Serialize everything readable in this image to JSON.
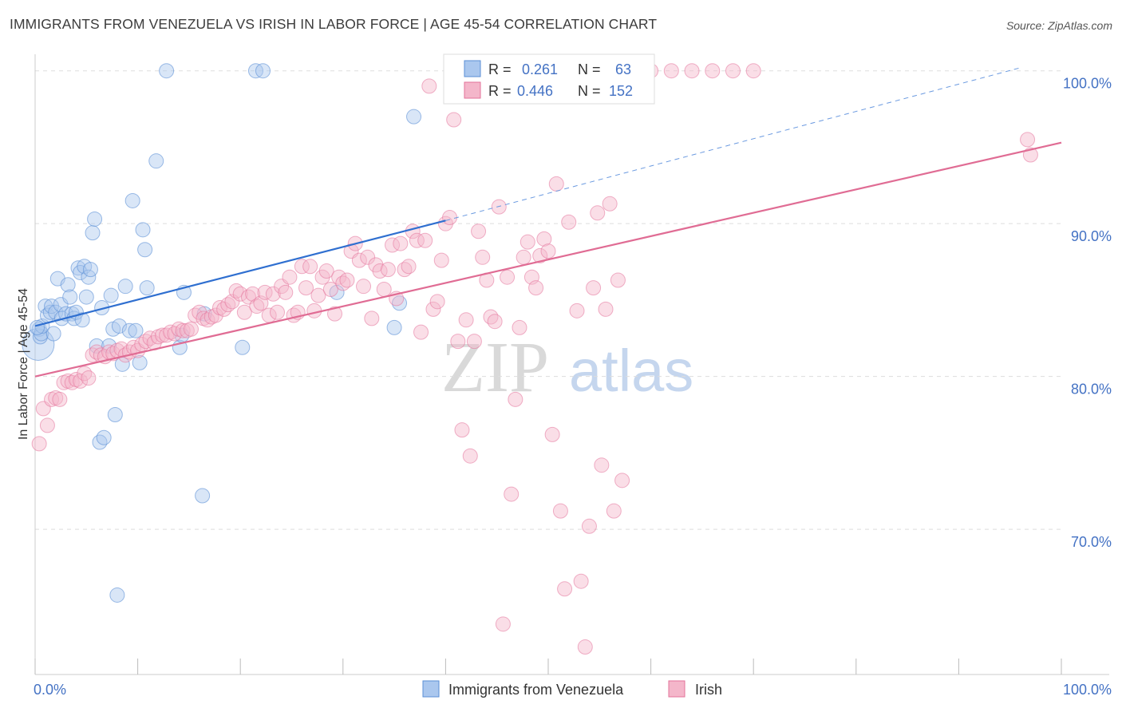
{
  "header": {
    "title": "IMMIGRANTS FROM VENEZUELA VS IRISH IN LABOR FORCE | AGE 45-54 CORRELATION CHART",
    "source": "Source: ZipAtlas.com"
  },
  "watermark": {
    "zip": "ZIP",
    "atlas": "atlas"
  },
  "colors": {
    "venezuela": "#5b8fd6",
    "venezuela_fill": "#aac7ee",
    "irish": "#e3739a",
    "irish_fill": "#f4b6ca",
    "axis_text_blue": "#4472c4",
    "grid": "#dddddd"
  },
  "chart_data": {
    "type": "scatter",
    "title": "IMMIGRANTS FROM VENEZUELA VS IRISH IN LABOR FORCE | AGE 45-54 CORRELATION CHART",
    "xlabel": "",
    "ylabel": "In Labor Force | Age 45-54",
    "xlim": [
      0,
      100
    ],
    "ylim": [
      60.5,
      101.5
    ],
    "x_tick_labels": {
      "left": "0.0%",
      "right": "100.0%"
    },
    "y_ticks": [
      {
        "value": 70,
        "label": "70.0%"
      },
      {
        "value": 80,
        "label": "80.0%"
      },
      {
        "value": 90,
        "label": "90.0%"
      },
      {
        "value": 100,
        "label": "100.0%"
      }
    ],
    "legend_stats": [
      {
        "r_label": "R =",
        "r_value": "0.261",
        "n_label": "N =",
        "n_value": "63"
      },
      {
        "r_label": "R =",
        "r_value": "0.446",
        "n_label": "N =",
        "n_value": "152"
      }
    ],
    "series": [
      {
        "name": "Immigrants from Venezuela",
        "trend": {
          "x0": 0,
          "y0": 83.3,
          "x1": 40,
          "y1": 90.2,
          "dash_to_x": 96,
          "dash_to_y": 100.2
        },
        "points": [
          [
            0.3,
            82.1
          ],
          [
            0.4,
            83.1
          ],
          [
            0.5,
            82.6
          ],
          [
            0.6,
            82.8
          ],
          [
            0.7,
            83.3
          ],
          [
            1.0,
            84.6
          ],
          [
            1.2,
            84.0
          ],
          [
            1.5,
            84.2
          ],
          [
            1.6,
            84.6
          ],
          [
            1.8,
            82.8
          ],
          [
            2.0,
            84.2
          ],
          [
            2.2,
            86.4
          ],
          [
            2.5,
            84.7
          ],
          [
            2.6,
            83.8
          ],
          [
            3.0,
            84.1
          ],
          [
            3.2,
            86.0
          ],
          [
            3.4,
            85.2
          ],
          [
            3.6,
            84.1
          ],
          [
            3.8,
            83.8
          ],
          [
            4.0,
            84.2
          ],
          [
            4.2,
            87.1
          ],
          [
            4.4,
            86.8
          ],
          [
            4.6,
            83.7
          ],
          [
            4.8,
            87.2
          ],
          [
            5.0,
            85.2
          ],
          [
            5.2,
            86.5
          ],
          [
            5.4,
            87.0
          ],
          [
            5.6,
            89.4
          ],
          [
            5.8,
            90.3
          ],
          [
            6.0,
            82.0
          ],
          [
            6.3,
            75.7
          ],
          [
            6.5,
            84.5
          ],
          [
            6.7,
            76.0
          ],
          [
            7.2,
            82.0
          ],
          [
            7.4,
            85.3
          ],
          [
            7.6,
            83.1
          ],
          [
            7.8,
            77.5
          ],
          [
            8.0,
            65.7
          ],
          [
            8.2,
            83.3
          ],
          [
            8.5,
            80.8
          ],
          [
            8.8,
            85.9
          ],
          [
            9.2,
            83.0
          ],
          [
            9.5,
            91.5
          ],
          [
            9.8,
            83.0
          ],
          [
            10.2,
            80.9
          ],
          [
            10.5,
            89.6
          ],
          [
            10.7,
            88.3
          ],
          [
            10.9,
            85.8
          ],
          [
            11.8,
            94.1
          ],
          [
            12.8,
            100.0
          ],
          [
            14.1,
            81.9
          ],
          [
            14.3,
            82.7
          ],
          [
            14.5,
            85.5
          ],
          [
            16.3,
            72.2
          ],
          [
            16.5,
            84.1
          ],
          [
            20.2,
            81.9
          ],
          [
            21.5,
            100.0
          ],
          [
            22.2,
            100.0
          ],
          [
            29.4,
            85.5
          ],
          [
            35.0,
            83.2
          ],
          [
            35.5,
            84.8
          ],
          [
            36.9,
            97.0
          ],
          [
            0.2,
            83.2
          ]
        ]
      },
      {
        "name": "Irish",
        "trend": {
          "x0": 0,
          "y0": 80.0,
          "x1": 100,
          "y1": 95.3
        },
        "points": [
          [
            0.4,
            75.6
          ],
          [
            0.8,
            77.9
          ],
          [
            1.2,
            76.8
          ],
          [
            1.6,
            78.5
          ],
          [
            2.0,
            78.6
          ],
          [
            2.4,
            78.5
          ],
          [
            2.8,
            79.6
          ],
          [
            3.2,
            79.7
          ],
          [
            3.6,
            79.6
          ],
          [
            4.0,
            79.8
          ],
          [
            4.4,
            79.7
          ],
          [
            4.8,
            80.2
          ],
          [
            5.2,
            79.9
          ],
          [
            5.6,
            81.4
          ],
          [
            6.0,
            81.6
          ],
          [
            6.4,
            81.4
          ],
          [
            6.8,
            81.3
          ],
          [
            7.2,
            81.6
          ],
          [
            7.6,
            81.5
          ],
          [
            8.0,
            81.7
          ],
          [
            8.4,
            81.8
          ],
          [
            8.8,
            81.4
          ],
          [
            9.2,
            81.6
          ],
          [
            9.6,
            81.9
          ],
          [
            10.0,
            81.7
          ],
          [
            10.4,
            82.1
          ],
          [
            10.8,
            82.3
          ],
          [
            11.2,
            82.5
          ],
          [
            11.6,
            82.2
          ],
          [
            12.0,
            82.6
          ],
          [
            12.4,
            82.7
          ],
          [
            12.8,
            82.7
          ],
          [
            13.2,
            82.9
          ],
          [
            13.6,
            82.8
          ],
          [
            14.0,
            83.1
          ],
          [
            14.4,
            83.0
          ],
          [
            14.8,
            83.0
          ],
          [
            15.2,
            83.1
          ],
          [
            15.6,
            84.0
          ],
          [
            16.0,
            84.2
          ],
          [
            16.4,
            83.8
          ],
          [
            16.8,
            83.7
          ],
          [
            17.2,
            83.9
          ],
          [
            17.6,
            84.0
          ],
          [
            18.0,
            84.5
          ],
          [
            18.4,
            84.4
          ],
          [
            18.8,
            84.7
          ],
          [
            19.2,
            84.9
          ],
          [
            19.6,
            85.6
          ],
          [
            20.0,
            85.4
          ],
          [
            20.4,
            84.2
          ],
          [
            20.8,
            85.2
          ],
          [
            21.2,
            85.4
          ],
          [
            21.6,
            84.6
          ],
          [
            22.0,
            84.8
          ],
          [
            22.4,
            85.5
          ],
          [
            22.8,
            84.0
          ],
          [
            23.2,
            85.4
          ],
          [
            23.6,
            84.2
          ],
          [
            24.0,
            85.9
          ],
          [
            24.4,
            85.5
          ],
          [
            24.8,
            86.5
          ],
          [
            25.2,
            84.0
          ],
          [
            25.6,
            84.2
          ],
          [
            26.0,
            87.2
          ],
          [
            26.4,
            85.8
          ],
          [
            26.8,
            87.2
          ],
          [
            27.2,
            84.3
          ],
          [
            27.6,
            85.3
          ],
          [
            28.0,
            86.5
          ],
          [
            28.4,
            86.9
          ],
          [
            28.8,
            85.7
          ],
          [
            29.2,
            84.1
          ],
          [
            29.6,
            86.5
          ],
          [
            30.0,
            86.1
          ],
          [
            30.4,
            86.3
          ],
          [
            30.8,
            88.2
          ],
          [
            31.2,
            88.7
          ],
          [
            31.6,
            87.6
          ],
          [
            32.0,
            85.9
          ],
          [
            32.4,
            87.8
          ],
          [
            32.8,
            83.8
          ],
          [
            33.2,
            87.3
          ],
          [
            33.6,
            86.9
          ],
          [
            34.0,
            85.7
          ],
          [
            34.4,
            87.0
          ],
          [
            34.8,
            88.6
          ],
          [
            35.2,
            85.1
          ],
          [
            35.6,
            88.7
          ],
          [
            36.0,
            87.0
          ],
          [
            36.4,
            87.2
          ],
          [
            36.8,
            89.5
          ],
          [
            37.2,
            88.9
          ],
          [
            37.6,
            82.9
          ],
          [
            38.0,
            88.9
          ],
          [
            38.4,
            99.0
          ],
          [
            38.8,
            84.4
          ],
          [
            39.2,
            84.9
          ],
          [
            39.6,
            87.6
          ],
          [
            40.0,
            90.0
          ],
          [
            40.4,
            90.4
          ],
          [
            40.8,
            96.8
          ],
          [
            41.2,
            82.3
          ],
          [
            41.6,
            76.5
          ],
          [
            42.0,
            83.7
          ],
          [
            42.4,
            74.8
          ],
          [
            42.8,
            82.3
          ],
          [
            43.2,
            89.5
          ],
          [
            43.6,
            87.8
          ],
          [
            44.0,
            86.3
          ],
          [
            44.4,
            83.9
          ],
          [
            44.8,
            83.6
          ],
          [
            45.2,
            91.1
          ],
          [
            45.6,
            63.8
          ],
          [
            46.0,
            86.5
          ],
          [
            46.4,
            72.3
          ],
          [
            46.8,
            78.5
          ],
          [
            47.2,
            83.2
          ],
          [
            47.6,
            87.8
          ],
          [
            48.0,
            88.8
          ],
          [
            48.4,
            86.5
          ],
          [
            48.8,
            85.8
          ],
          [
            49.2,
            87.9
          ],
          [
            49.6,
            89.0
          ],
          [
            50.0,
            88.2
          ],
          [
            50.4,
            76.2
          ],
          [
            50.8,
            92.6
          ],
          [
            51.2,
            71.2
          ],
          [
            51.6,
            66.1
          ],
          [
            52.0,
            90.1
          ],
          [
            52.4,
            100.0
          ],
          [
            52.8,
            84.3
          ],
          [
            53.2,
            66.6
          ],
          [
            53.6,
            62.3
          ],
          [
            54.0,
            70.2
          ],
          [
            54.4,
            85.8
          ],
          [
            54.8,
            90.7
          ],
          [
            55.2,
            74.2
          ],
          [
            55.6,
            84.4
          ],
          [
            56.0,
            91.3
          ],
          [
            56.4,
            71.2
          ],
          [
            56.8,
            86.3
          ],
          [
            57.2,
            73.2
          ],
          [
            58.0,
            100.0
          ],
          [
            60.0,
            100.0
          ],
          [
            62.0,
            100.0
          ],
          [
            64.0,
            100.0
          ],
          [
            66.0,
            100.0
          ],
          [
            68.0,
            100.0
          ],
          [
            70.0,
            100.0
          ],
          [
            96.7,
            95.5
          ],
          [
            97.0,
            94.5
          ]
        ]
      }
    ]
  },
  "legend": {
    "items": [
      {
        "label": "Immigrants from Venezuela"
      },
      {
        "label": "Irish"
      }
    ]
  }
}
